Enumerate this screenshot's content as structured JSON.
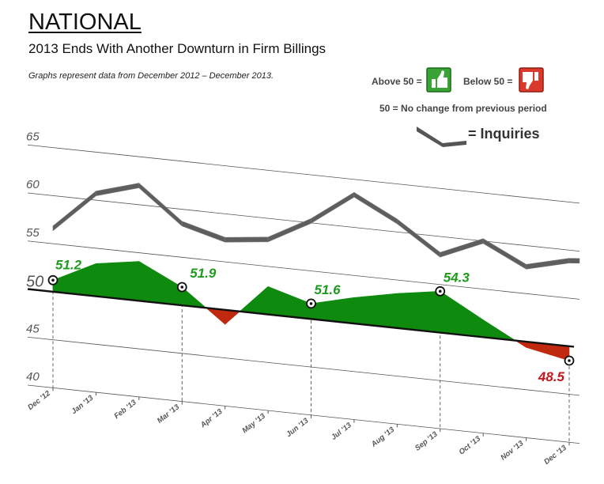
{
  "header": {
    "title": "NATIONAL",
    "subtitle": "2013 Ends With Another Downturn in Firm Billings",
    "note": "Graphs represent data from December 2012 – December 2013."
  },
  "legend": {
    "above": "Above 50 =",
    "below": "Below 50 =",
    "baseline_note": "50 = No change from previous period",
    "inquiries_label": "= Inquiries",
    "above_icon": "thumbs-up-icon",
    "below_icon": "thumbs-down-icon"
  },
  "colors": {
    "above": "#0e8a0e",
    "below": "#c0290f",
    "inquiries": "#666666",
    "label_green": "#1f9a1f",
    "label_red": "#c4161c"
  },
  "chart_data": {
    "type": "area",
    "categories": [
      "Dec '12",
      "Jan '13",
      "Feb '13",
      "Mar '13",
      "Apr '13",
      "May '13",
      "Jun '13",
      "Jul '13",
      "Aug '13",
      "Sep '13",
      "Oct '13",
      "Nov '13",
      "Dec '13"
    ],
    "y_ticks": [
      "65",
      "60",
      "55",
      "50",
      "45",
      "40"
    ],
    "ylim": [
      40,
      65
    ],
    "baseline": 50,
    "grid": true,
    "series": [
      {
        "values": [
          51.2,
          53.4,
          54.1,
          51.9,
          48.5,
          52.9,
          51.6,
          52.7,
          53.6,
          54.3,
          51.8,
          49.4,
          48.5
        ]
      },
      {
        "name": "Inquiries",
        "values": [
          56.6,
          60.7,
          62.0,
          58.5,
          57.3,
          57.8,
          60.2,
          63.4,
          61.1,
          58.1,
          60.0,
          57.8,
          58.9
        ]
      }
    ],
    "labeled_points": [
      {
        "category": "Dec '12",
        "label": "51.2",
        "status": "above"
      },
      {
        "category": "Mar '13",
        "label": "51.9",
        "status": "above"
      },
      {
        "category": "Jun '13",
        "label": "51.6",
        "status": "above"
      },
      {
        "category": "Sep '13",
        "label": "54.3",
        "status": "above"
      },
      {
        "category": "Dec '13",
        "label": "48.5",
        "status": "below"
      }
    ]
  }
}
